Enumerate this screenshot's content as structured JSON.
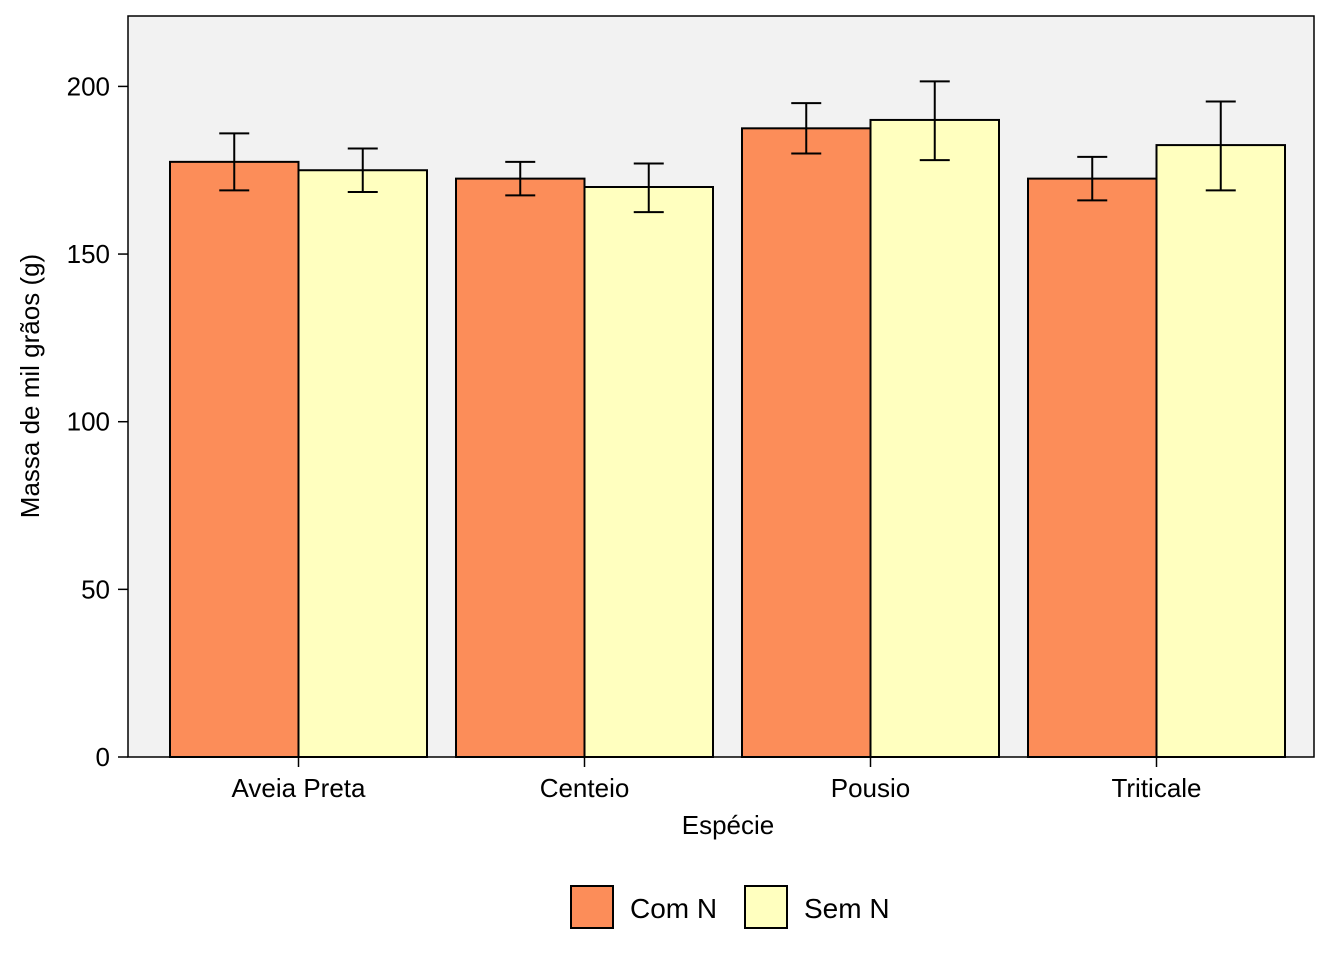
{
  "chart_data": {
    "type": "bar",
    "title": "",
    "xlabel": "Espécie",
    "ylabel": "Massa de mil grãos (g)",
    "categories": [
      "Aveia Preta",
      "Centeio",
      "Pousio",
      "Triticale"
    ],
    "ylim": [
      0,
      221
    ],
    "yticks": [
      0,
      50,
      100,
      150,
      200
    ],
    "series": [
      {
        "name": "Com N",
        "color": "#FC8D59",
        "values": [
          177.5,
          172.5,
          187.5,
          172.5
        ],
        "error_low": [
          169,
          167.5,
          180,
          166
        ],
        "error_high": [
          186,
          177.5,
          195,
          179
        ]
      },
      {
        "name": "Sem N",
        "color": "#FFFFBF",
        "values": [
          175,
          170,
          190,
          182.5
        ],
        "error_low": [
          168.5,
          162.5,
          178,
          169
        ],
        "error_high": [
          181.5,
          177,
          201.5,
          195.5
        ]
      }
    ],
    "grid": false,
    "panel_background": "#F2F2F2",
    "legend_position": "bottom"
  }
}
